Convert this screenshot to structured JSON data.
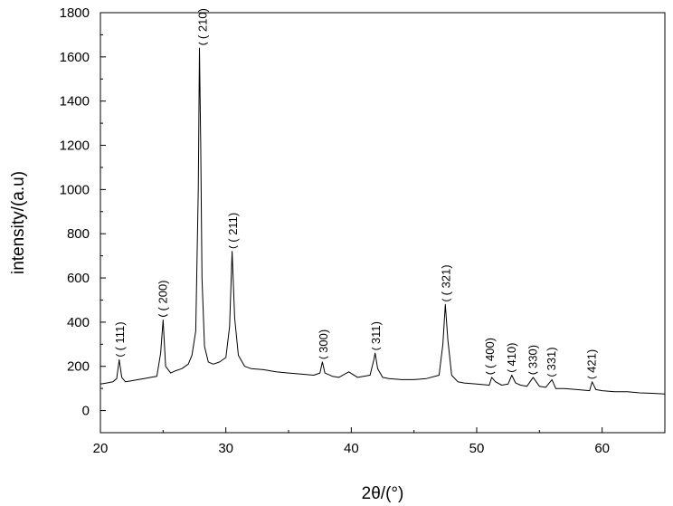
{
  "chart_data": {
    "type": "line",
    "title": "",
    "xlabel": "2θ/(°)",
    "ylabel": "intensity/(a.u)",
    "xlim": [
      20,
      65
    ],
    "ylim": [
      -100,
      1800
    ],
    "x_ticks": [
      20,
      30,
      40,
      50,
      60
    ],
    "y_ticks": [
      0,
      200,
      400,
      600,
      800,
      1000,
      1200,
      1400,
      1600,
      1800
    ],
    "grid": false,
    "legend": "none",
    "series_color": "#000000",
    "series": [
      {
        "x": [
          20.0,
          20.5,
          21.0,
          21.3,
          21.5,
          21.7,
          22.0,
          22.5,
          23.0,
          23.5,
          24.0,
          24.5,
          24.8,
          25.0,
          25.2,
          25.6,
          26.0,
          26.5,
          27.0,
          27.3,
          27.6,
          27.8,
          27.9,
          28.0,
          28.1,
          28.3,
          28.6,
          29.0,
          29.5,
          30.0,
          30.3,
          30.5,
          30.7,
          31.0,
          31.5,
          32.0,
          33.0,
          34.0,
          35.0,
          36.0,
          37.0,
          37.5,
          37.7,
          37.9,
          38.5,
          39.0,
          39.8,
          40.5,
          41.5,
          41.8,
          41.9,
          42.1,
          42.5,
          43.0,
          44.0,
          45.0,
          46.0,
          47.0,
          47.3,
          47.5,
          47.7,
          48.0,
          48.5,
          49.0,
          50.0,
          51.0,
          51.2,
          51.5,
          52.0,
          52.5,
          52.8,
          53.1,
          53.5,
          54.0,
          54.5,
          55.0,
          55.5,
          56.0,
          56.3,
          57.0,
          58.0,
          59.0,
          59.2,
          59.5,
          60.0,
          61.0,
          62.0,
          63.0,
          64.0,
          65.0
        ],
        "y": [
          120,
          125,
          130,
          145,
          230,
          150,
          130,
          135,
          140,
          145,
          150,
          155,
          260,
          410,
          200,
          170,
          180,
          190,
          210,
          250,
          360,
          1000,
          1640,
          1200,
          600,
          290,
          220,
          210,
          220,
          240,
          380,
          720,
          420,
          250,
          200,
          190,
          185,
          175,
          170,
          165,
          160,
          170,
          220,
          170,
          155,
          150,
          175,
          150,
          160,
          230,
          260,
          190,
          150,
          145,
          140,
          140,
          145,
          160,
          300,
          480,
          320,
          160,
          130,
          125,
          120,
          115,
          150,
          130,
          115,
          120,
          160,
          125,
          115,
          110,
          150,
          110,
          105,
          140,
          100,
          100,
          95,
          90,
          130,
          95,
          90,
          85,
          85,
          80,
          78,
          75
        ]
      }
    ],
    "annotations": [
      {
        "text": "( 111)",
        "x": 21.6,
        "y": 230
      },
      {
        "text": "( 200)",
        "x": 25.0,
        "y": 410
      },
      {
        "text": "( 210)",
        "x": 28.2,
        "y": 1640
      },
      {
        "text": "( 211)",
        "x": 30.6,
        "y": 720
      },
      {
        "text": "300)",
        "x": 37.8,
        "y": 220
      },
      {
        "text": "311)",
        "x": 42.0,
        "y": 260
      },
      {
        "text": "( 321)",
        "x": 47.6,
        "y": 480
      },
      {
        "text": "( 400)",
        "x": 51.1,
        "y": 150
      },
      {
        "text": "410)",
        "x": 52.8,
        "y": 160
      },
      {
        "text": "330)",
        "x": 54.5,
        "y": 150
      },
      {
        "text": "331)",
        "x": 56.0,
        "y": 140
      },
      {
        "text": "421)",
        "x": 59.2,
        "y": 130
      }
    ]
  }
}
